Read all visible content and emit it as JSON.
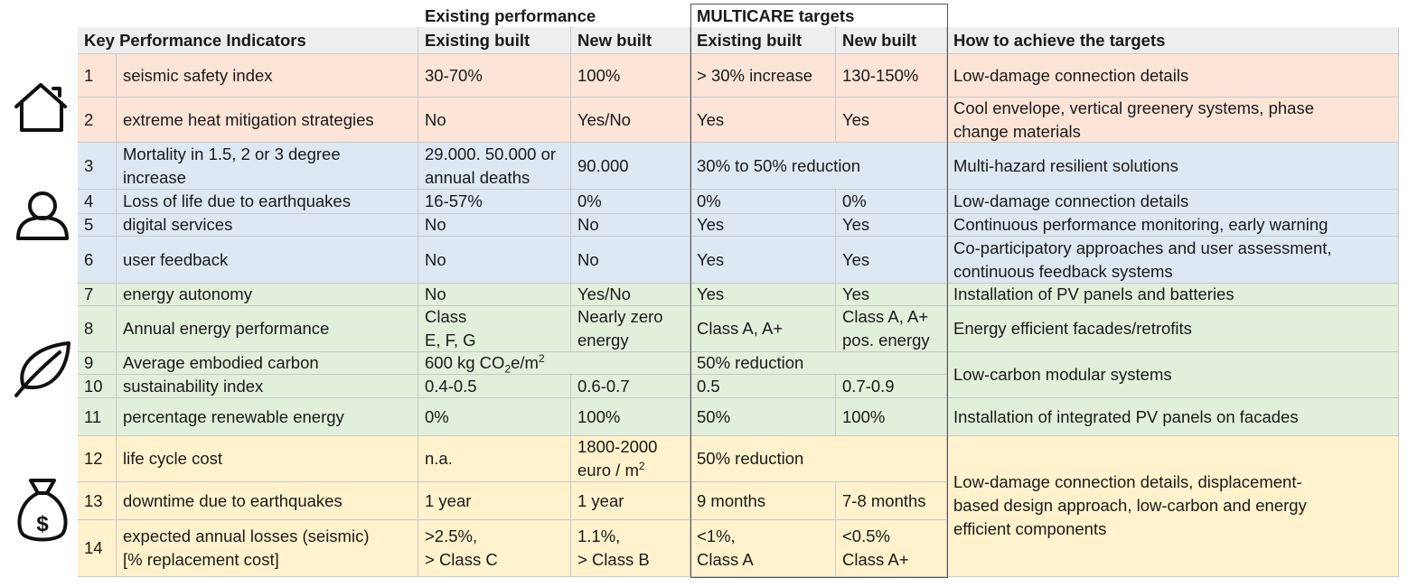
{
  "colors": {
    "header_bg": "#eeeeee",
    "safety": "#fce4d6",
    "people": "#dde8f3",
    "environment": "#e2efda",
    "cost": "#fff2cc",
    "grid": "#c9c9c9"
  },
  "header": {
    "group_existing": "Existing performance",
    "group_targets": "MULTICARE targets",
    "kpi": "Key Performance Indicators",
    "existing_built": "Existing built",
    "new_built": "New built",
    "targets_existing_built": "Existing built",
    "targets_new_built": "New built",
    "how": "How to achieve the targets"
  },
  "icons": [
    "house-icon",
    "person-icon",
    "leaf-icon",
    "money-bag-icon"
  ],
  "rows": [
    {
      "num": "1",
      "kpi": [
        "seismic safety index"
      ],
      "ex_e": [
        "30-70%"
      ],
      "ex_n": [
        "100%"
      ],
      "t_e": [
        "> 30% increase"
      ],
      "t_n": [
        "130-150%"
      ],
      "how": [
        "Low-damage connection details"
      ]
    },
    {
      "num": "2",
      "kpi": [
        "extreme heat mitigation strategies"
      ],
      "ex_e": [
        "No"
      ],
      "ex_n": [
        "Yes/No"
      ],
      "t_e": [
        "Yes"
      ],
      "t_n": [
        "Yes"
      ],
      "how": [
        "Cool envelope, vertical greenery systems, phase",
        "change materials"
      ]
    },
    {
      "num": "3",
      "kpi": [
        "Mortality in 1.5, 2 or 3 degree",
        "increase"
      ],
      "ex_e": [
        "29.000. 50.000 or",
        "annual deaths"
      ],
      "ex_n": [
        "90.000"
      ],
      "t_span": "30%  to 50% reduction",
      "how": [
        "Multi-hazard resilient solutions"
      ]
    },
    {
      "num": "4",
      "kpi": [
        "Loss of life due to earthquakes"
      ],
      "ex_e": [
        "16-57%"
      ],
      "ex_n": [
        "0%"
      ],
      "t_e": [
        "0%"
      ],
      "t_n": [
        "0%"
      ],
      "how": [
        "Low-damage connection details"
      ]
    },
    {
      "num": "5",
      "kpi": [
        "digital services"
      ],
      "ex_e": [
        "No"
      ],
      "ex_n": [
        "No"
      ],
      "t_e": [
        "Yes"
      ],
      "t_n": [
        "Yes"
      ],
      "how": [
        "Continuous performance monitoring, early warning"
      ]
    },
    {
      "num": "6",
      "kpi": [
        "user feedback"
      ],
      "ex_e": [
        "No"
      ],
      "ex_n": [
        "No"
      ],
      "t_e": [
        "Yes"
      ],
      "t_n": [
        "Yes"
      ],
      "how": [
        "Co-participatory approaches and user assessment,",
        "continuous feedback systems"
      ]
    },
    {
      "num": "7",
      "kpi": [
        "energy autonomy"
      ],
      "ex_e": [
        "No"
      ],
      "ex_n": [
        "Yes/No"
      ],
      "t_e": [
        "Yes"
      ],
      "t_n": [
        "Yes"
      ],
      "how": [
        "Installation of PV panels and batteries"
      ]
    },
    {
      "num": "8",
      "kpi": [
        "Annual energy performance"
      ],
      "ex_e": [
        "Class",
        "E, F, G"
      ],
      "ex_n": [
        "Nearly zero",
        "energy"
      ],
      "t_e": [
        "Class A, A+"
      ],
      "t_n": [
        "Class A, A+",
        "pos. energy"
      ],
      "how": [
        "Energy efficient facades/retrofits"
      ]
    },
    {
      "num": "9",
      "kpi": [
        "Average embodied carbon"
      ],
      "ex_span_parts": [
        "600 kg CO",
        "2",
        "e/m",
        "2"
      ],
      "t_span": "50% reduction"
    },
    {
      "num": "10",
      "kpi": [
        "sustainability index"
      ],
      "ex_e": [
        "0.4-0.5"
      ],
      "ex_n": [
        "0.6-0.7"
      ],
      "t_e": [
        "0.5"
      ],
      "t_n": [
        "0.7-0.9"
      ]
    },
    {
      "num": "11",
      "kpi": [
        "percentage renewable energy"
      ],
      "ex_e": [
        "0%"
      ],
      "ex_n": [
        "100%"
      ],
      "t_e": [
        "50%"
      ],
      "t_n": [
        "100%"
      ],
      "how": [
        "Installation of integrated PV panels on facades"
      ]
    },
    {
      "num": "12",
      "kpi": [
        "life cycle cost"
      ],
      "ex_e": [
        "n.a."
      ],
      "ex_n_parts": [
        "1800-2000",
        "euro / m",
        "2"
      ],
      "t_span": "50% reduction"
    },
    {
      "num": "13",
      "kpi": [
        "downtime due to earthquakes"
      ],
      "ex_e": [
        "1 year"
      ],
      "ex_n": [
        "1 year"
      ],
      "t_e": [
        "9 months"
      ],
      "t_n": [
        "7-8 months"
      ]
    },
    {
      "num": "14",
      "kpi": [
        "expected annual losses (seismic)",
        "[% replacement cost]"
      ],
      "ex_e": [
        ">2.5%,",
        "> Class C"
      ],
      "ex_n": [
        "1.1%,",
        "> Class B"
      ],
      "t_e": [
        "<1%,",
        "Class A"
      ],
      "t_n": [
        "<0.5%",
        "Class A+"
      ]
    }
  ],
  "how_merged": {
    "carbon": [
      "Low-carbon modular systems"
    ],
    "cost": [
      "Low-damage connection details, displacement-",
      "based design approach, low-carbon and energy",
      "efficient components"
    ]
  }
}
